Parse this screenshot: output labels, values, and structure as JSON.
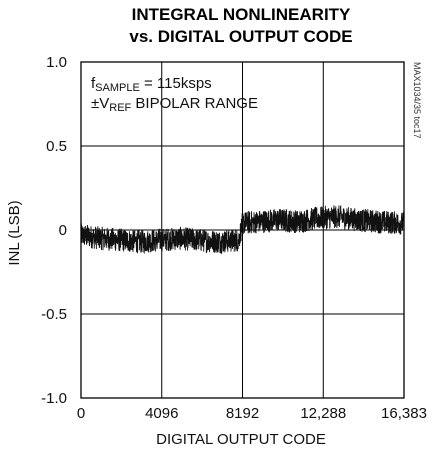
{
  "chart_data": {
    "type": "line",
    "title_line1": "INTEGRAL NONLINEARITY",
    "title_line2": "vs. DIGITAL OUTPUT CODE",
    "xlabel": "DIGITAL OUTPUT CODE",
    "ylabel": "INL (LSB)",
    "xlim": [
      0,
      16383
    ],
    "ylim": [
      -1.0,
      1.0
    ],
    "x_ticks": [
      0,
      4096,
      8192,
      12288,
      16383
    ],
    "x_tick_labels": [
      "0",
      "4096",
      "8192",
      "12,288",
      "16,383"
    ],
    "y_ticks": [
      1.0,
      0.5,
      0,
      -0.5,
      -1.0
    ],
    "y_tick_labels": [
      "1.0",
      "0.5",
      "0",
      "-0.5",
      "-1.0"
    ],
    "grid": true,
    "annotation": {
      "line1_prefix": "f",
      "line1_sub": "SAMPLE",
      "line1_suffix": " = 115ksps",
      "line2_prefix": "±V",
      "line2_sub": "REF",
      "line2_suffix": " BIPOLAR RANGE"
    },
    "figure_tag": "MAX1034/35 toc17",
    "series": [
      {
        "x": [
          0,
          1000,
          2000,
          3000,
          4000,
          5000,
          6000,
          7000,
          8000,
          8192,
          9000,
          10000,
          11000,
          12000,
          13000,
          14000,
          15000,
          16383
        ],
        "y": [
          -0.03,
          -0.05,
          -0.06,
          -0.07,
          -0.06,
          -0.05,
          -0.06,
          -0.07,
          -0.06,
          0.04,
          0.05,
          0.06,
          0.05,
          0.07,
          0.08,
          0.06,
          0.05,
          0.04
        ],
        "band_halfwidth": 0.07,
        "color": "#111111"
      }
    ]
  }
}
